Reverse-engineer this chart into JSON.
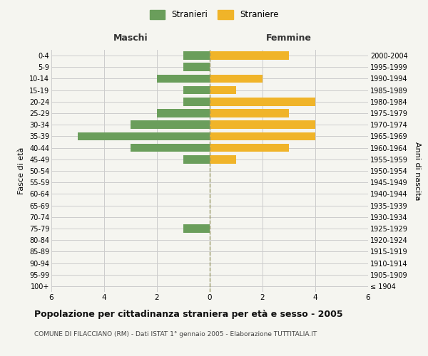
{
  "age_groups": [
    "100+",
    "95-99",
    "90-94",
    "85-89",
    "80-84",
    "75-79",
    "70-74",
    "65-69",
    "60-64",
    "55-59",
    "50-54",
    "45-49",
    "40-44",
    "35-39",
    "30-34",
    "25-29",
    "20-24",
    "15-19",
    "10-14",
    "5-9",
    "0-4"
  ],
  "birth_years": [
    "≤ 1904",
    "1905-1909",
    "1910-1914",
    "1915-1919",
    "1920-1924",
    "1925-1929",
    "1930-1934",
    "1935-1939",
    "1940-1944",
    "1945-1949",
    "1950-1954",
    "1955-1959",
    "1960-1964",
    "1965-1969",
    "1970-1974",
    "1975-1979",
    "1980-1984",
    "1985-1989",
    "1990-1994",
    "1995-1999",
    "2000-2004"
  ],
  "males": [
    0,
    0,
    0,
    0,
    0,
    1,
    0,
    0,
    0,
    0,
    0,
    1,
    3,
    5,
    3,
    2,
    1,
    1,
    2,
    1,
    1
  ],
  "females": [
    0,
    0,
    0,
    0,
    0,
    0,
    0,
    0,
    0,
    0,
    0,
    1,
    3,
    4,
    4,
    3,
    4,
    1,
    2,
    0,
    3
  ],
  "male_color": "#6a9e5b",
  "female_color": "#f0b429",
  "background_color": "#f5f5f0",
  "grid_color": "#cccccc",
  "center_line_color": "#999966",
  "xlim": 6,
  "xlabel_left": "Maschi",
  "xlabel_right": "Femmine",
  "ylabel_left": "Fasce di età",
  "ylabel_right": "Anni di nascita",
  "legend_male": "Stranieri",
  "legend_female": "Straniere",
  "title": "Popolazione per cittadinanza straniera per età e sesso - 2005",
  "subtitle": "COMUNE DI FILACCIANO (RM) - Dati ISTAT 1° gennaio 2005 - Elaborazione TUTTITALIA.IT"
}
